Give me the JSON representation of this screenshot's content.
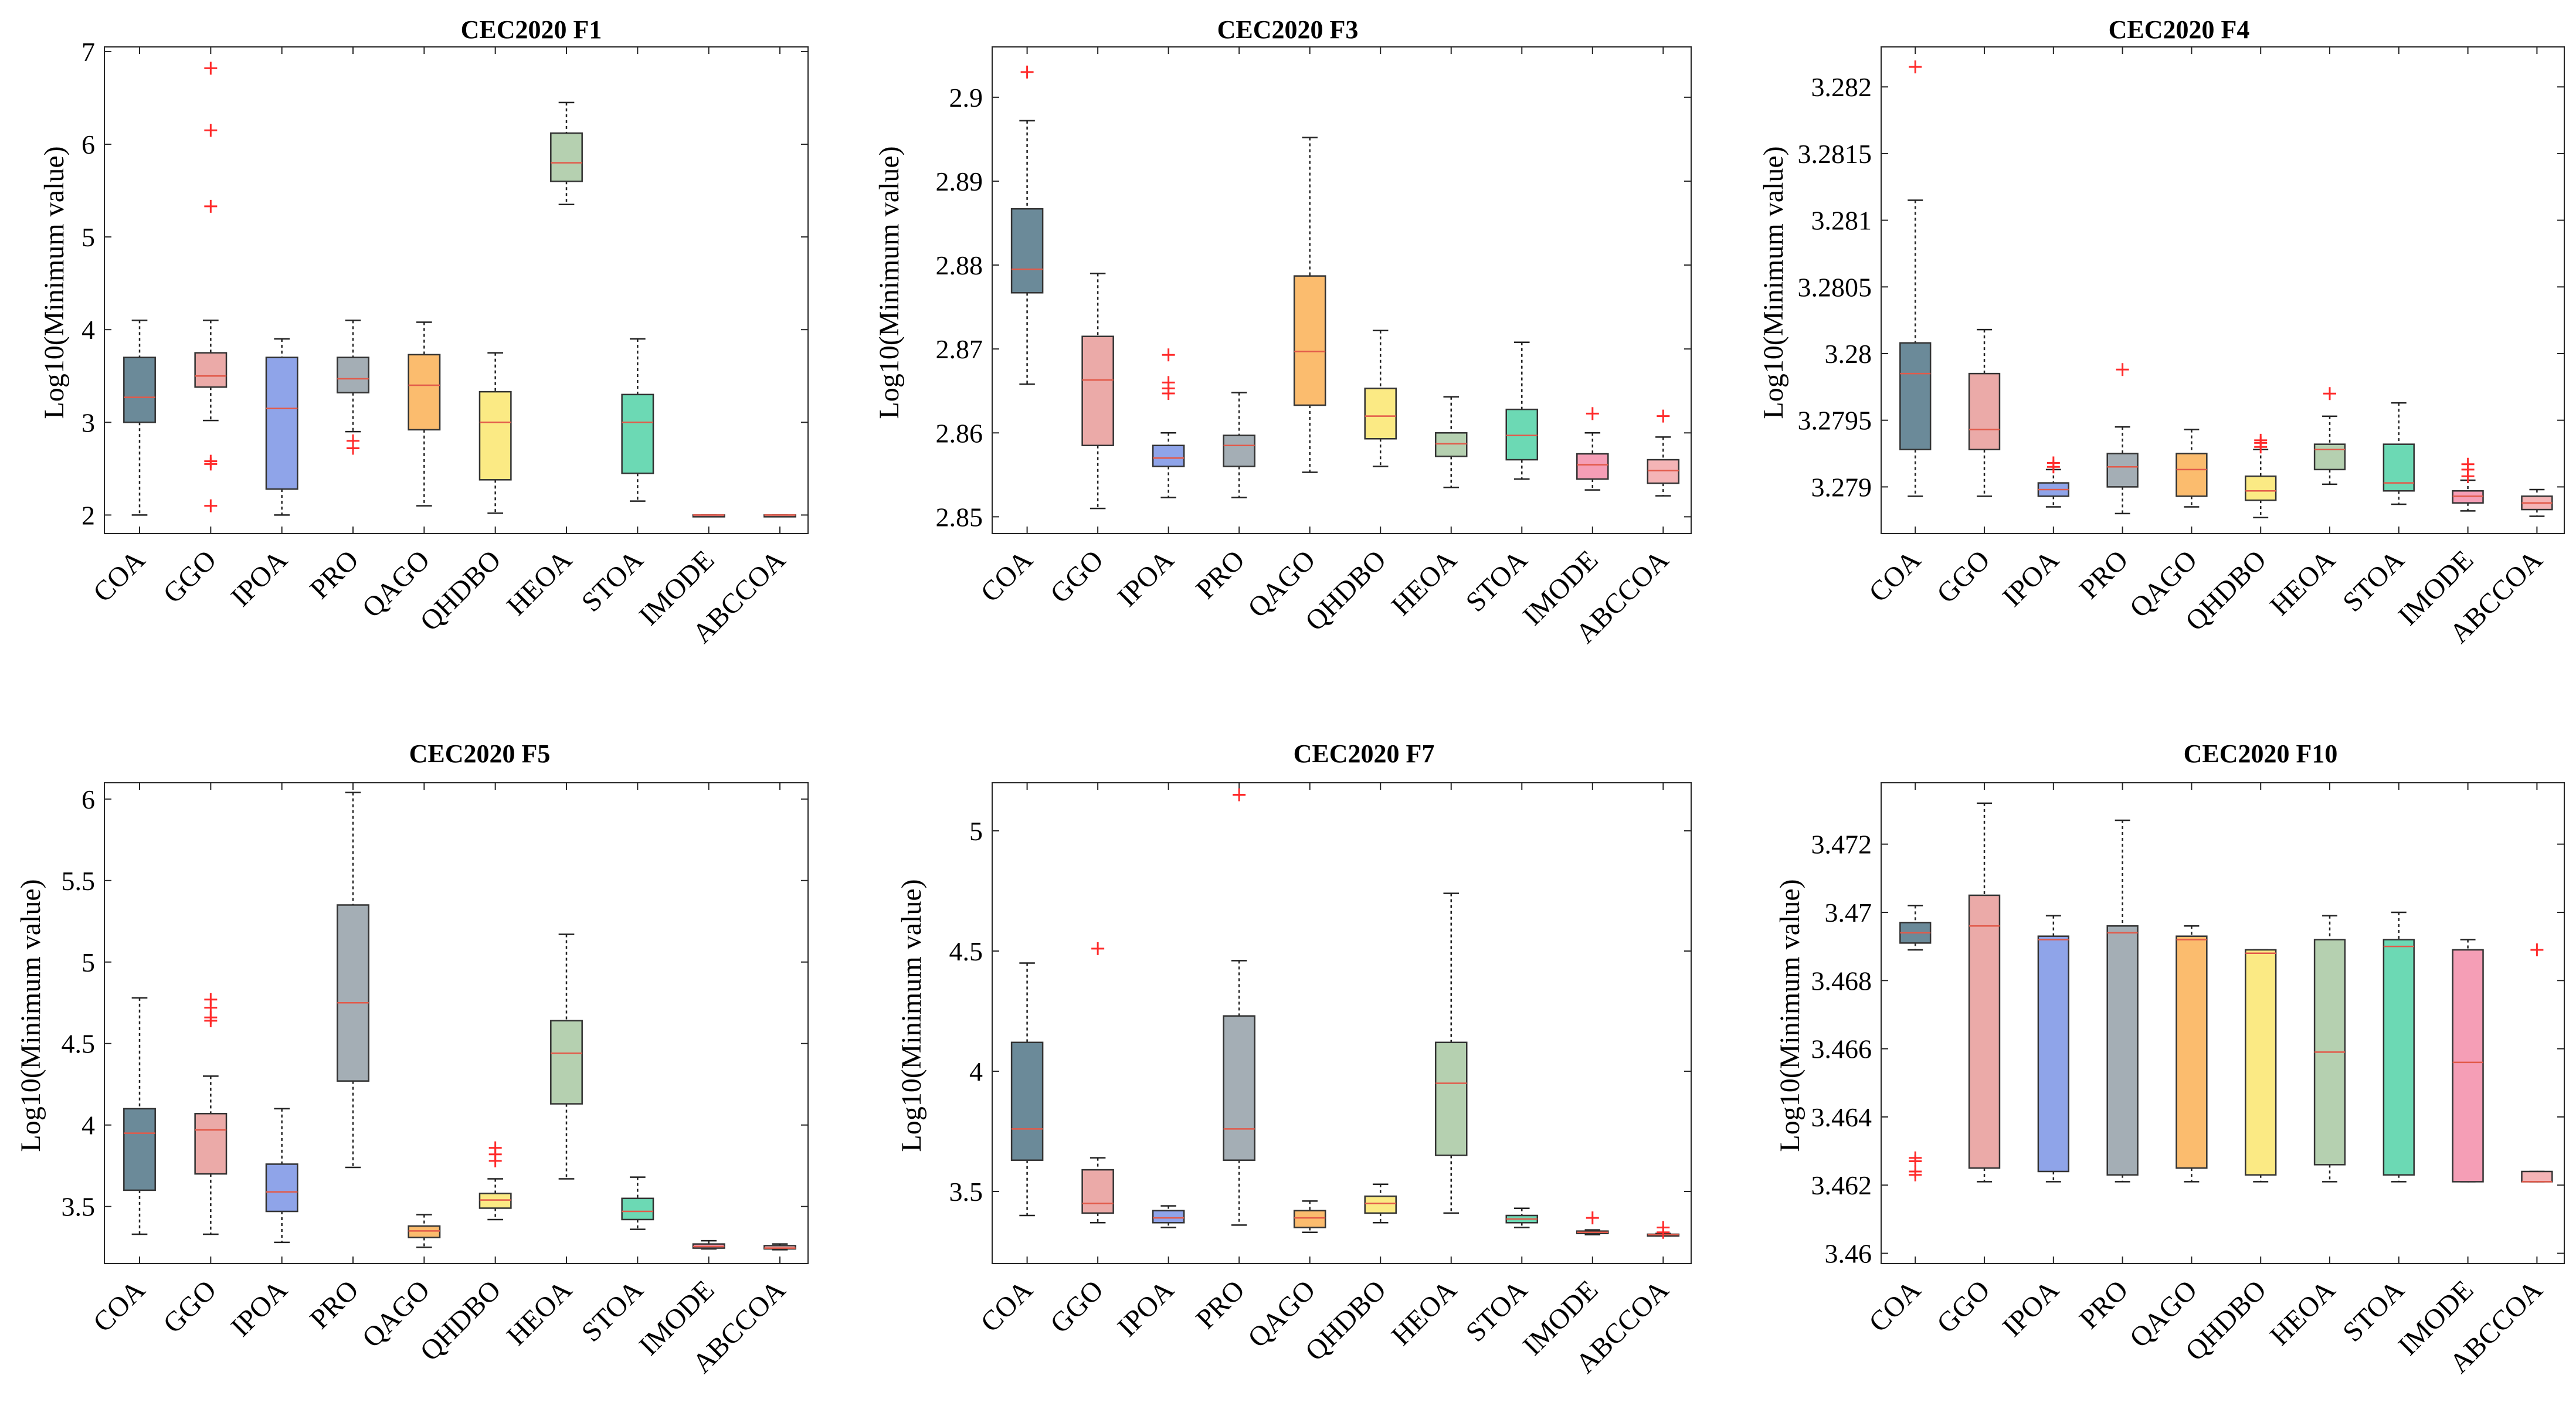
{
  "colors": {
    "COA": "#6b8a99",
    "GGO": "#ebaaa8",
    "IPOA": "#8fa4e9",
    "PRO": "#a4aeb5",
    "QAGO": "#fbbc6e",
    "QHDBO": "#fbea84",
    "HEOA": "#b5d0b0",
    "STOA": "#6cd9b4",
    "IMODE": "#f59eb6",
    "ABCCOA": "#f4b4b6",
    "median": "#e25a4a",
    "outlier": "#ff2b2b"
  },
  "chart_data": [
    {
      "type": "box",
      "title": "CEC2020 F1",
      "ylabel": "Log10(Minimum value)",
      "ylim": [
        1.8,
        7.05
      ],
      "yticks": [
        2,
        3,
        4,
        5,
        6,
        7
      ],
      "ytick_labels": [
        "2",
        "3",
        "4",
        "5",
        "6",
        "7"
      ],
      "categories": [
        "COA",
        "GGO",
        "IPOA",
        "PRO",
        "QAGO",
        "QHDBO",
        "HEOA",
        "STOA",
        "IMODE",
        "ABCCOA"
      ],
      "boxes": [
        {
          "min": 2.0,
          "q1": 3.0,
          "median": 3.27,
          "q3": 3.7,
          "max": 4.1,
          "outliers": []
        },
        {
          "min": 3.02,
          "q1": 3.38,
          "median": 3.5,
          "q3": 3.75,
          "max": 4.1,
          "outliers": [
            6.82,
            6.15,
            5.33,
            2.58,
            2.55,
            2.1
          ]
        },
        {
          "min": 2.0,
          "q1": 2.28,
          "median": 3.15,
          "q3": 3.7,
          "max": 3.9,
          "outliers": []
        },
        {
          "min": 2.9,
          "q1": 3.32,
          "median": 3.47,
          "q3": 3.7,
          "max": 4.1,
          "outliers": [
            2.8,
            2.72
          ]
        },
        {
          "min": 2.1,
          "q1": 2.92,
          "median": 3.4,
          "q3": 3.73,
          "max": 4.08,
          "outliers": []
        },
        {
          "min": 2.02,
          "q1": 2.38,
          "median": 3.0,
          "q3": 3.33,
          "max": 3.75,
          "outliers": []
        },
        {
          "min": 5.35,
          "q1": 5.6,
          "median": 5.8,
          "q3": 6.12,
          "max": 6.45,
          "outliers": []
        },
        {
          "min": 2.15,
          "q1": 2.45,
          "median": 3.0,
          "q3": 3.3,
          "max": 3.9,
          "outliers": []
        },
        {
          "min": 2.0,
          "q1": 2.0,
          "median": 2.0,
          "q3": 2.0,
          "max": 2.0,
          "outliers": []
        },
        {
          "min": 2.0,
          "q1": 2.0,
          "median": 2.0,
          "q3": 2.0,
          "max": 2.0,
          "outliers": []
        }
      ]
    },
    {
      "type": "box",
      "title": "CEC2020 F3",
      "ylabel": "Log10(Minimum value)",
      "ylim": [
        2.848,
        2.906
      ],
      "yticks": [
        2.85,
        2.86,
        2.87,
        2.88,
        2.89,
        2.9
      ],
      "ytick_labels": [
        "2.85",
        "2.86",
        "2.87",
        "2.88",
        "2.89",
        "2.9"
      ],
      "categories": [
        "COA",
        "GGO",
        "IPOA",
        "PRO",
        "QAGO",
        "QHDBO",
        "HEOA",
        "STOA",
        "IMODE",
        "ABCCOA"
      ],
      "boxes": [
        {
          "min": 2.8658,
          "q1": 2.8767,
          "median": 2.8795,
          "q3": 2.8867,
          "max": 2.8972,
          "outliers": [
            2.903
          ]
        },
        {
          "min": 2.851,
          "q1": 2.8585,
          "median": 2.8663,
          "q3": 2.8715,
          "max": 2.879,
          "outliers": []
        },
        {
          "min": 2.8523,
          "q1": 2.856,
          "median": 2.857,
          "q3": 2.8585,
          "max": 2.86,
          "outliers": [
            2.8693,
            2.866,
            2.8653,
            2.8647
          ]
        },
        {
          "min": 2.8523,
          "q1": 2.856,
          "median": 2.8585,
          "q3": 2.8597,
          "max": 2.8648,
          "outliers": []
        },
        {
          "min": 2.8553,
          "q1": 2.8633,
          "median": 2.8697,
          "q3": 2.8787,
          "max": 2.8952,
          "outliers": []
        },
        {
          "min": 2.856,
          "q1": 2.8593,
          "median": 2.862,
          "q3": 2.8653,
          "max": 2.8722,
          "outliers": []
        },
        {
          "min": 2.8535,
          "q1": 2.8572,
          "median": 2.8587,
          "q3": 2.86,
          "max": 2.8643,
          "outliers": []
        },
        {
          "min": 2.8545,
          "q1": 2.8568,
          "median": 2.8597,
          "q3": 2.8628,
          "max": 2.8708,
          "outliers": []
        },
        {
          "min": 2.8532,
          "q1": 2.8545,
          "median": 2.8562,
          "q3": 2.8575,
          "max": 2.86,
          "outliers": [
            2.8623
          ]
        },
        {
          "min": 2.8525,
          "q1": 2.854,
          "median": 2.8555,
          "q3": 2.8568,
          "max": 2.8595,
          "outliers": [
            2.862
          ]
        }
      ]
    },
    {
      "type": "box",
      "title": "CEC2020 F4",
      "ylabel": "Log10(Minimum value)",
      "ylim": [
        3.27865,
        3.2823
      ],
      "yticks": [
        3.279,
        3.2795,
        3.28,
        3.2805,
        3.281,
        3.2815,
        3.282
      ],
      "ytick_labels": [
        "3.279",
        "3.2795",
        "3.28",
        "3.2805",
        "3.281",
        "3.2815",
        "3.282"
      ],
      "categories": [
        "COA",
        "GGO",
        "IPOA",
        "PRO",
        "QAGO",
        "QHDBO",
        "HEOA",
        "STOA",
        "IMODE",
        "ABCCOA"
      ],
      "boxes": [
        {
          "min": 3.27893,
          "q1": 3.27928,
          "median": 3.27985,
          "q3": 3.28008,
          "max": 3.28115,
          "outliers": [
            3.28215
          ]
        },
        {
          "min": 3.27893,
          "q1": 3.27928,
          "median": 3.27943,
          "q3": 3.27985,
          "max": 3.28018,
          "outliers": []
        },
        {
          "min": 3.27885,
          "q1": 3.27893,
          "median": 3.27898,
          "q3": 3.27903,
          "max": 3.27913,
          "outliers": [
            3.27918,
            3.27915
          ]
        },
        {
          "min": 3.2788,
          "q1": 3.279,
          "median": 3.27915,
          "q3": 3.27925,
          "max": 3.27945,
          "outliers": [
            3.27988
          ]
        },
        {
          "min": 3.27885,
          "q1": 3.27893,
          "median": 3.27913,
          "q3": 3.27925,
          "max": 3.27943,
          "outliers": []
        },
        {
          "min": 3.27877,
          "q1": 3.2789,
          "median": 3.27897,
          "q3": 3.27908,
          "max": 3.27928,
          "outliers": [
            3.27935,
            3.27933,
            3.2793
          ]
        },
        {
          "min": 3.27902,
          "q1": 3.27913,
          "median": 3.27928,
          "q3": 3.27932,
          "max": 3.27953,
          "outliers": [
            3.2797
          ]
        },
        {
          "min": 3.27887,
          "q1": 3.27897,
          "median": 3.27903,
          "q3": 3.27932,
          "max": 3.27963,
          "outliers": []
        },
        {
          "min": 3.27882,
          "q1": 3.27888,
          "median": 3.27893,
          "q3": 3.27897,
          "max": 3.27905,
          "outliers": [
            3.27917,
            3.27913,
            3.27908
          ]
        },
        {
          "min": 3.27878,
          "q1": 3.27883,
          "median": 3.27888,
          "q3": 3.27893,
          "max": 3.27898,
          "outliers": []
        }
      ]
    },
    {
      "type": "box",
      "title": "CEC2020 F5",
      "ylabel": "Log10(Minimum value)",
      "ylim": [
        3.15,
        6.1
      ],
      "yticks": [
        3.5,
        4,
        4.5,
        5,
        5.5,
        6
      ],
      "ytick_labels": [
        "3.5",
        "4",
        "4.5",
        "5",
        "5.5",
        "6"
      ],
      "categories": [
        "COA",
        "GGO",
        "IPOA",
        "PRO",
        "QAGO",
        "QHDBO",
        "HEOA",
        "STOA",
        "IMODE",
        "ABCCOA"
      ],
      "boxes": [
        {
          "min": 3.33,
          "q1": 3.6,
          "median": 3.95,
          "q3": 4.1,
          "max": 4.78,
          "outliers": []
        },
        {
          "min": 3.33,
          "q1": 3.7,
          "median": 3.97,
          "q3": 4.07,
          "max": 4.3,
          "outliers": [
            4.77,
            4.72,
            4.66,
            4.64
          ]
        },
        {
          "min": 3.28,
          "q1": 3.47,
          "median": 3.59,
          "q3": 3.76,
          "max": 4.1,
          "outliers": []
        },
        {
          "min": 3.74,
          "q1": 4.27,
          "median": 4.75,
          "q3": 5.35,
          "max": 6.04,
          "outliers": []
        },
        {
          "min": 3.25,
          "q1": 3.31,
          "median": 3.35,
          "q3": 3.38,
          "max": 3.45,
          "outliers": []
        },
        {
          "min": 3.42,
          "q1": 3.49,
          "median": 3.54,
          "q3": 3.58,
          "max": 3.67,
          "outliers": [
            3.86,
            3.82,
            3.78
          ]
        },
        {
          "min": 3.67,
          "q1": 4.13,
          "median": 4.44,
          "q3": 4.64,
          "max": 5.17,
          "outliers": []
        },
        {
          "min": 3.36,
          "q1": 3.42,
          "median": 3.47,
          "q3": 3.55,
          "max": 3.68,
          "outliers": []
        },
        {
          "min": 3.24,
          "q1": 3.245,
          "median": 3.255,
          "q3": 3.27,
          "max": 3.29,
          "outliers": []
        },
        {
          "min": 3.235,
          "q1": 3.24,
          "median": 3.245,
          "q3": 3.26,
          "max": 3.27,
          "outliers": []
        }
      ]
    },
    {
      "type": "box",
      "title": "CEC2020 F7",
      "ylabel": "Log10(Minimum value)",
      "ylim": [
        3.2,
        5.2
      ],
      "yticks": [
        3.5,
        4,
        4.5,
        5
      ],
      "ytick_labels": [
        "3.5",
        "4",
        "4.5",
        "5"
      ],
      "categories": [
        "COA",
        "GGO",
        "IPOA",
        "PRO",
        "QAGO",
        "QHDBO",
        "HEOA",
        "STOA",
        "IMODE",
        "ABCCOA"
      ],
      "boxes": [
        {
          "min": 3.4,
          "q1": 3.63,
          "median": 3.76,
          "q3": 4.12,
          "max": 4.45,
          "outliers": []
        },
        {
          "min": 3.37,
          "q1": 3.41,
          "median": 3.45,
          "q3": 3.59,
          "max": 3.64,
          "outliers": [
            4.51
          ]
        },
        {
          "min": 3.35,
          "q1": 3.37,
          "median": 3.39,
          "q3": 3.42,
          "max": 3.44,
          "outliers": []
        },
        {
          "min": 3.36,
          "q1": 3.63,
          "median": 3.76,
          "q3": 4.23,
          "max": 4.46,
          "outliers": [
            5.15
          ]
        },
        {
          "min": 3.33,
          "q1": 3.35,
          "median": 3.39,
          "q3": 3.42,
          "max": 3.46,
          "outliers": []
        },
        {
          "min": 3.37,
          "q1": 3.41,
          "median": 3.45,
          "q3": 3.48,
          "max": 3.53,
          "outliers": []
        },
        {
          "min": 3.41,
          "q1": 3.65,
          "median": 3.95,
          "q3": 4.12,
          "max": 4.74,
          "outliers": []
        },
        {
          "min": 3.35,
          "q1": 3.37,
          "median": 3.385,
          "q3": 3.4,
          "max": 3.43,
          "outliers": []
        },
        {
          "min": 3.32,
          "q1": 3.325,
          "median": 3.33,
          "q3": 3.335,
          "max": 3.34,
          "outliers": [
            3.39
          ]
        },
        {
          "min": 3.315,
          "q1": 3.318,
          "median": 3.32,
          "q3": 3.322,
          "max": 3.325,
          "outliers": [
            3.35,
            3.33
          ]
        }
      ]
    },
    {
      "type": "box",
      "title": "CEC2020 F10",
      "ylabel": "Log10(Minimum value)",
      "ylim": [
        3.4597,
        3.4738
      ],
      "yticks": [
        3.46,
        3.462,
        3.464,
        3.466,
        3.468,
        3.47,
        3.472
      ],
      "ytick_labels": [
        "3.46",
        "3.462",
        "3.464",
        "3.466",
        "3.468",
        "3.47",
        "3.472"
      ],
      "categories": [
        "COA",
        "GGO",
        "IPOA",
        "PRO",
        "QAGO",
        "QHDBO",
        "HEOA",
        "STOA",
        "IMODE",
        "ABCCOA"
      ],
      "boxes": [
        {
          "min": 3.4689,
          "q1": 3.4691,
          "median": 3.4694,
          "q3": 3.4697,
          "max": 3.4702,
          "outliers": [
            3.4628,
            3.4627,
            3.4624,
            3.4623
          ]
        },
        {
          "min": 3.4621,
          "q1": 3.4625,
          "median": 3.4696,
          "q3": 3.4705,
          "max": 3.4732,
          "outliers": []
        },
        {
          "min": 3.4621,
          "q1": 3.4624,
          "median": 3.4692,
          "q3": 3.4693,
          "max": 3.4699,
          "outliers": []
        },
        {
          "min": 3.4621,
          "q1": 3.4623,
          "median": 3.4694,
          "q3": 3.4696,
          "max": 3.4727,
          "outliers": []
        },
        {
          "min": 3.4621,
          "q1": 3.4625,
          "median": 3.4692,
          "q3": 3.4693,
          "max": 3.4696,
          "outliers": []
        },
        {
          "min": 3.4621,
          "q1": 3.4623,
          "median": 3.4688,
          "q3": 3.4689,
          "max": 3.4689,
          "outliers": []
        },
        {
          "min": 3.4621,
          "q1": 3.4626,
          "median": 3.4659,
          "q3": 3.4692,
          "max": 3.4699,
          "outliers": []
        },
        {
          "min": 3.4621,
          "q1": 3.4623,
          "median": 3.469,
          "q3": 3.4692,
          "max": 3.47,
          "outliers": []
        },
        {
          "min": 3.4621,
          "q1": 3.4621,
          "median": 3.4656,
          "q3": 3.4689,
          "max": 3.4692,
          "outliers": []
        },
        {
          "min": 3.4621,
          "q1": 3.4621,
          "median": 3.4621,
          "q3": 3.4624,
          "max": 3.4624,
          "outliers": [
            3.4689
          ]
        }
      ]
    }
  ]
}
